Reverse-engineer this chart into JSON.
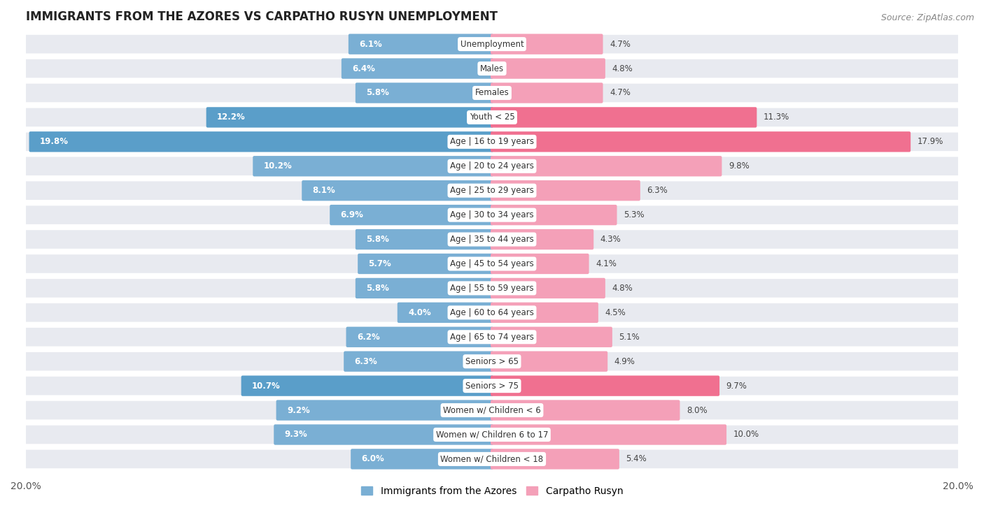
{
  "title": "IMMIGRANTS FROM THE AZORES VS CARPATHO RUSYN UNEMPLOYMENT",
  "source": "Source: ZipAtlas.com",
  "categories": [
    "Unemployment",
    "Males",
    "Females",
    "Youth < 25",
    "Age | 16 to 19 years",
    "Age | 20 to 24 years",
    "Age | 25 to 29 years",
    "Age | 30 to 34 years",
    "Age | 35 to 44 years",
    "Age | 45 to 54 years",
    "Age | 55 to 59 years",
    "Age | 60 to 64 years",
    "Age | 65 to 74 years",
    "Seniors > 65",
    "Seniors > 75",
    "Women w/ Children < 6",
    "Women w/ Children 6 to 17",
    "Women w/ Children < 18"
  ],
  "left_values": [
    6.1,
    6.4,
    5.8,
    12.2,
    19.8,
    10.2,
    8.1,
    6.9,
    5.8,
    5.7,
    5.8,
    4.0,
    6.2,
    6.3,
    10.7,
    9.2,
    9.3,
    6.0
  ],
  "right_values": [
    4.7,
    4.8,
    4.7,
    11.3,
    17.9,
    9.8,
    6.3,
    5.3,
    4.3,
    4.1,
    4.8,
    4.5,
    5.1,
    4.9,
    9.7,
    8.0,
    10.0,
    5.4
  ],
  "left_color": "#7aafd4",
  "right_color": "#f4a0b8",
  "left_highlight_color": "#5a9ec9",
  "right_highlight_color": "#f07090",
  "highlight_rows": [
    3,
    4,
    14
  ],
  "xlim": 20.0,
  "left_label": "Immigrants from the Azores",
  "right_label": "Carpatho Rusyn",
  "background_color": "#ffffff",
  "row_bg_color": "#e8eaf0",
  "row_separator_color": "#ffffff"
}
